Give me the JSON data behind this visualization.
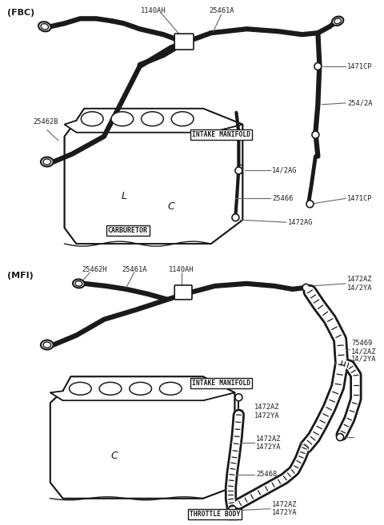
{
  "bg": "#ffffff",
  "lc": "#1a1a1a",
  "gray": "#666666",
  "fig_w": 4.8,
  "fig_h": 6.57,
  "dpi": 100,
  "fbc_label": "(FBC)",
  "mfi_label": "(MFI)",
  "fbc": {
    "top_parts": [
      "1140AH",
      "25461A"
    ],
    "left_part": "25462B",
    "right_parts": [
      "1471CP",
      "254/2A",
      "1471CP"
    ],
    "center_parts": [
      "14/2AG",
      "25466"
    ],
    "bottom_parts": [
      "CARBURETOR",
      "1472AG"
    ],
    "intake": "INTAKE MANIFOLD"
  },
  "mfi": {
    "top_parts": [
      "25462H",
      "25461A",
      "1140AH"
    ],
    "right_top": [
      "1472AZ",
      "14/2YA"
    ],
    "right_mid": [
      "75469",
      "14/2AZ",
      "14/2YA"
    ],
    "right_bot": [
      "1472AZ",
      "1472YA"
    ],
    "center_parts": [
      "1472AZ",
      "1472YA",
      "25468"
    ],
    "bottom": "THROTTLE BODY",
    "intake": "INTAKE MANIFOLD"
  }
}
